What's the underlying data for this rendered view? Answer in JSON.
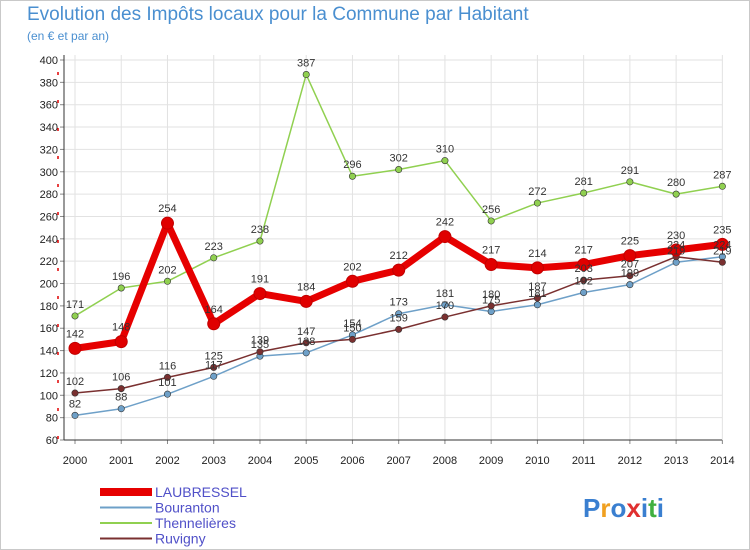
{
  "header": {
    "title": "Evolution des Impôts locaux pour la Commune par Habitant",
    "subtitle": "(en € et par an)"
  },
  "logo": {
    "text": "Proxiti"
  },
  "chart_data": {
    "type": "line",
    "title": "Evolution des Impôts locaux pour la Commune par Habitant",
    "subtitle": "(en € et par an)",
    "categories": [
      "2000",
      "2001",
      "2002",
      "2003",
      "2004",
      "2005",
      "2006",
      "2007",
      "2008",
      "2009",
      "2010",
      "2011",
      "2012",
      "2013",
      "2014"
    ],
    "ylim": [
      60,
      400
    ],
    "yticks": [
      60,
      80,
      100,
      120,
      140,
      160,
      180,
      200,
      220,
      240,
      260,
      280,
      300,
      320,
      340,
      360,
      380,
      400
    ],
    "grid": true,
    "legend_position": "bottom-left",
    "series": [
      {
        "name": "LAUBRESSEL",
        "color": "#e60000",
        "bold": true,
        "values": [
          142,
          148,
          254,
          164,
          191,
          184,
          202,
          212,
          242,
          217,
          214,
          217,
          225,
          230,
          235
        ],
        "labels": [
          "142",
          "148",
          "254",
          "164",
          "191",
          "184",
          "202",
          "212",
          "242",
          "217",
          "214",
          "217",
          "225",
          "230",
          "235"
        ]
      },
      {
        "name": "Bouranton",
        "color": "#6ea0c8",
        "values": [
          82,
          88,
          101,
          117,
          135,
          138,
          154,
          173,
          181,
          175,
          181,
          192,
          199,
          219,
          224
        ],
        "labels": [
          "82",
          "88",
          "101",
          "117",
          "135",
          "138",
          "154",
          "173",
          "181",
          "175",
          "181",
          "192",
          "199",
          "219",
          "224"
        ]
      },
      {
        "name": "Thennelières",
        "color": "#90d050",
        "values": [
          171,
          196,
          202,
          223,
          238,
          387,
          296,
          302,
          310,
          256,
          272,
          281,
          291,
          280,
          287
        ],
        "labels": [
          "171",
          "196",
          "202",
          "223",
          "238",
          "387",
          "296",
          "302",
          "310",
          "256",
          "272",
          "281",
          "291",
          "280",
          "287"
        ]
      },
      {
        "name": "Ruvigny",
        "color": "#7a3030",
        "values": [
          102,
          106,
          116,
          125,
          139,
          147,
          150,
          159,
          170,
          180,
          187,
          203,
          207,
          224,
          219
        ],
        "labels": [
          "102",
          "106",
          "116",
          "125",
          "139",
          "147",
          "150",
          "159",
          "170",
          "180",
          "187",
          "203",
          "207",
          "224",
          "219"
        ]
      }
    ]
  }
}
